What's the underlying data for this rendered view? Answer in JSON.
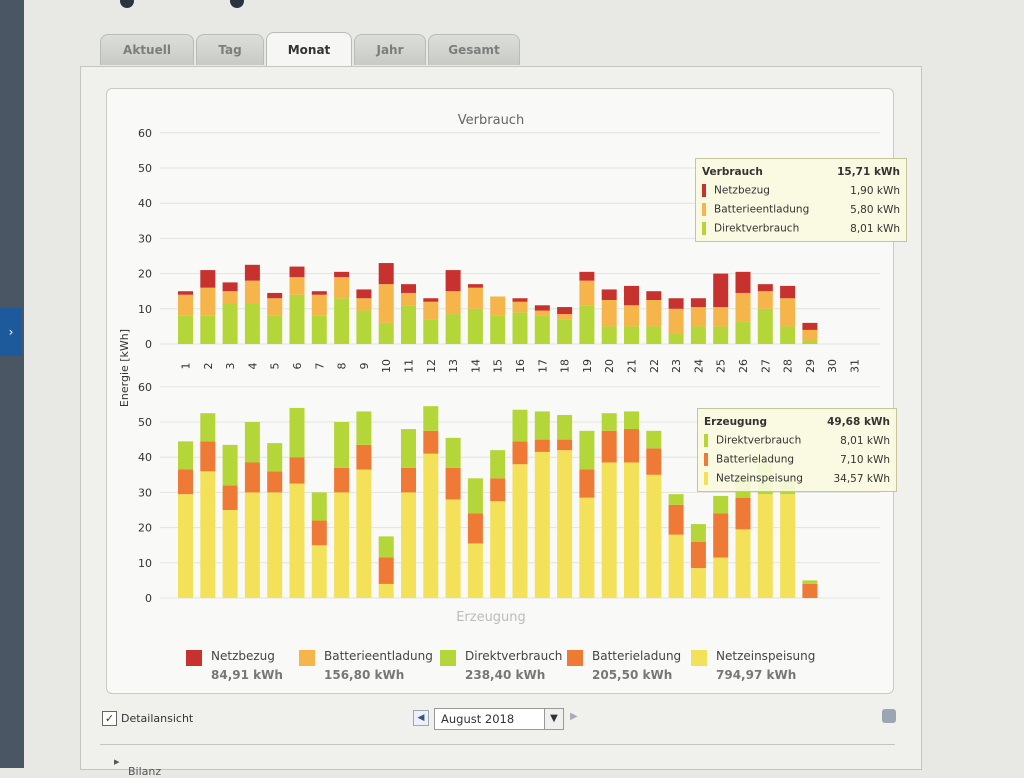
{
  "tabs": [
    "Aktuell",
    "Tag",
    "Monat",
    "Jahr",
    "Gesamt"
  ],
  "active_tab": "Monat",
  "chart_data": [
    {
      "type": "bar",
      "stacked": true,
      "title": "Verbrauch",
      "ylabel": "Energie [kWh]",
      "ylim": [
        0,
        60
      ],
      "yticks": [
        0,
        10,
        20,
        30,
        40,
        50,
        60
      ],
      "categories": [
        "1",
        "2",
        "3",
        "4",
        "5",
        "6",
        "7",
        "8",
        "9",
        "10",
        "11",
        "12",
        "13",
        "14",
        "15",
        "16",
        "17",
        "18",
        "19",
        "20",
        "21",
        "22",
        "23",
        "24",
        "25",
        "26",
        "27",
        "28",
        "29",
        "30",
        "31"
      ],
      "series": [
        {
          "name": "Direktverbrauch",
          "color": "#b5d638",
          "values": [
            8,
            8,
            11.5,
            11.5,
            8,
            14,
            8,
            13,
            9.5,
            6,
            11,
            7,
            8.5,
            10,
            8,
            9,
            8,
            7,
            11,
            5,
            5,
            5,
            3,
            5,
            5,
            6.5,
            10,
            5,
            1,
            0,
            0
          ]
        },
        {
          "name": "Batterieentladung",
          "color": "#f6b54a",
          "values": [
            6,
            8,
            3.5,
            6.5,
            5,
            5,
            6,
            6,
            3.5,
            11,
            3.5,
            5,
            6.5,
            6,
            5.5,
            3,
            1.5,
            1.5,
            7,
            7.5,
            6,
            7.5,
            7,
            5.5,
            5.5,
            8,
            5,
            8,
            3,
            0,
            0
          ]
        },
        {
          "name": "Netzbezug",
          "color": "#c8322e",
          "values": [
            1,
            5,
            2.5,
            4.5,
            1.5,
            3,
            1,
            1.5,
            2.5,
            6,
            2.5,
            1,
            6,
            1,
            0,
            1,
            1.5,
            2,
            2.5,
            3,
            5.5,
            2.5,
            3,
            2.5,
            9.5,
            6,
            2,
            3.5,
            2,
            0,
            0
          ]
        }
      ]
    },
    {
      "type": "bar",
      "stacked": true,
      "title": "Erzeugung",
      "ylabel": "Energie [kWh]",
      "ylim": [
        0,
        60
      ],
      "yticks": [
        0,
        10,
        20,
        30,
        40,
        50,
        60
      ],
      "series": [
        {
          "name": "Netzeinspeisung",
          "color": "#f3e15a",
          "values": [
            29.5,
            36,
            25,
            30,
            30,
            32.5,
            15,
            30,
            36.5,
            4,
            30,
            41,
            28,
            15.5,
            27.5,
            38,
            41.5,
            42,
            28.5,
            38.5,
            38.5,
            35,
            18,
            8.5,
            11.5,
            19.5,
            29.5,
            29.5,
            0,
            0,
            0
          ]
        },
        {
          "name": "Batterieladung",
          "color": "#ee7a35",
          "values": [
            7,
            8.5,
            7,
            8.5,
            6,
            7.5,
            7,
            7,
            7,
            7.5,
            7,
            6.5,
            9,
            8.5,
            6.5,
            6.5,
            3.5,
            3,
            8,
            9,
            9.5,
            7.5,
            8.5,
            7.5,
            12.5,
            9,
            0,
            0,
            4,
            0,
            0
          ]
        },
        {
          "name": "Direktverbrauch",
          "color": "#b5d638",
          "values": [
            8,
            8,
            11.5,
            11.5,
            8,
            14,
            8,
            13,
            9.5,
            6,
            11,
            7,
            8.5,
            10,
            8,
            9,
            8,
            7,
            11,
            5,
            5,
            5,
            3,
            5,
            5,
            6.5,
            10,
            5,
            1,
            0,
            0
          ]
        }
      ]
    }
  ],
  "tooltip_verbrauch": {
    "title": "Verbrauch",
    "total": "15,71 kWh",
    "rows": [
      {
        "label": "Netzbezug",
        "value": "1,90 kWh",
        "color": "#c8322e"
      },
      {
        "label": "Batterieentladung",
        "value": "5,80 kWh",
        "color": "#f6b54a"
      },
      {
        "label": "Direktverbrauch",
        "value": "8,01 kWh",
        "color": "#b5d638"
      }
    ]
  },
  "tooltip_erzeugung": {
    "title": "Erzeugung",
    "total": "49,68 kWh",
    "rows": [
      {
        "label": "Direktverbrauch",
        "value": "8,01 kWh",
        "color": "#b5d638"
      },
      {
        "label": "Batterieladung",
        "value": "7,10 kWh",
        "color": "#ee7a35"
      },
      {
        "label": "Netzeinspeisung",
        "value": "34,57 kWh",
        "color": "#f3e15a"
      }
    ]
  },
  "legend": [
    {
      "name": "Netzbezug",
      "value": "84,91 kWh",
      "color": "#c8322e"
    },
    {
      "name": "Batterieentladung",
      "value": "156,80 kWh",
      "color": "#f6b54a"
    },
    {
      "name": "Direktverbrauch",
      "value": "238,40 kWh",
      "color": "#b5d638"
    },
    {
      "name": "Batterieladung",
      "value": "205,50 kWh",
      "color": "#ee7a35"
    },
    {
      "name": "Netzeinspeisung",
      "value": "794,97 kWh",
      "color": "#f3e15a"
    }
  ],
  "detail_checkbox_label": "Detailansicht",
  "month_select_value": "August 2018",
  "bilanz_label": "Bilanz"
}
